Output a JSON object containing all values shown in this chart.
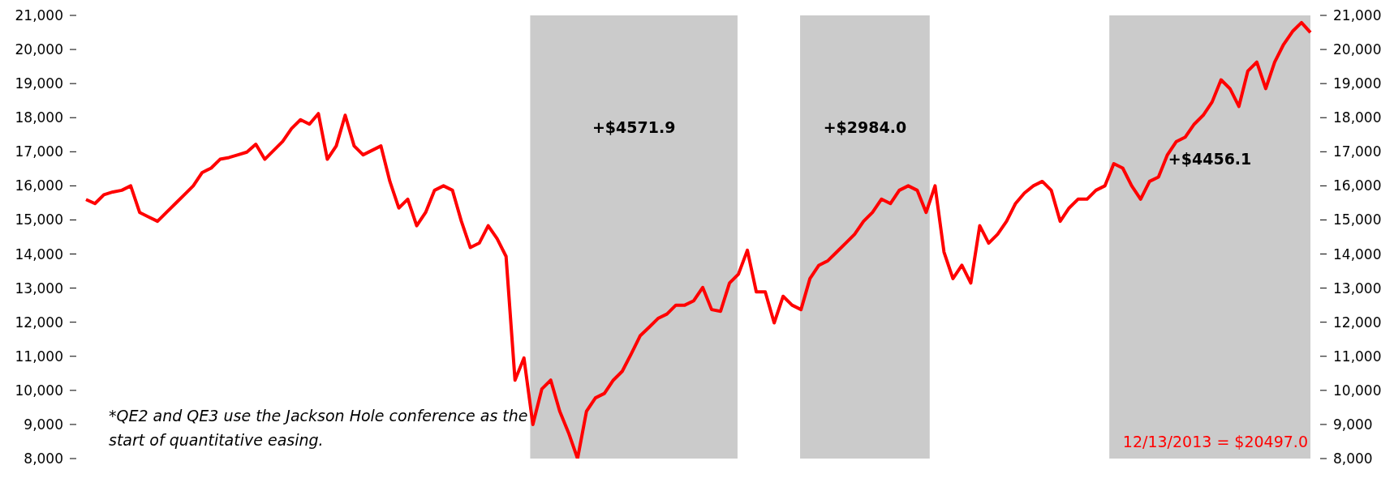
{
  "chart_data": {
    "type": "line",
    "categories": [
      null,
      null,
      null,
      null,
      null,
      null,
      null,
      null,
      null,
      null,
      null,
      null,
      null,
      null,
      null,
      null,
      null,
      null,
      null,
      null,
      null,
      null,
      null,
      null,
      null,
      null,
      null,
      null,
      null,
      null,
      null,
      null,
      null,
      null,
      null,
      null,
      null,
      null,
      null,
      null,
      null,
      null,
      null,
      null,
      null,
      null,
      null,
      null,
      null,
      null,
      null,
      null,
      null,
      null,
      null,
      null,
      null,
      null,
      null,
      null,
      null,
      null,
      null,
      null,
      null,
      null,
      null,
      null,
      null,
      null,
      null,
      null,
      null,
      null,
      null,
      null,
      null,
      null,
      null,
      null,
      null,
      null,
      null,
      null,
      null,
      null,
      null,
      null,
      null,
      null,
      null,
      null,
      null,
      null,
      null,
      null,
      null,
      null,
      null,
      null,
      null,
      null,
      null,
      null,
      null,
      null,
      null,
      null,
      null,
      null,
      null,
      null,
      null,
      null,
      null,
      null,
      null,
      null,
      null,
      null,
      null,
      null,
      null,
      null,
      null,
      null,
      null,
      null,
      null,
      null,
      null,
      null,
      null,
      null,
      null,
      null,
      null,
      null
    ],
    "series": [
      {
        "color": "#ff0000",
        "values": [
          15600,
          15480,
          15740,
          15820,
          15870,
          16000,
          15220,
          15090,
          14960,
          15220,
          15480,
          15740,
          16000,
          16390,
          16520,
          16780,
          16830,
          16910,
          16990,
          17220,
          16780,
          17040,
          17300,
          17680,
          17940,
          17810,
          18120,
          16780,
          17170,
          18070,
          17170,
          16910,
          17040,
          17170,
          16130,
          15350,
          15610,
          14830,
          15220,
          15870,
          16000,
          15870,
          14960,
          14190,
          14320,
          14830,
          14450,
          13930,
          10300,
          10950,
          9000,
          10040,
          10300,
          9390,
          8750,
          8000,
          9390,
          9780,
          9910,
          10300,
          10560,
          11070,
          11600,
          11850,
          12110,
          12240,
          12500,
          12500,
          12630,
          13020,
          12370,
          12320,
          13150,
          13410,
          14110,
          12890,
          12890,
          11980,
          12760,
          12500,
          12370,
          13280,
          13670,
          13800,
          14060,
          14320,
          14580,
          14960,
          15220,
          15610,
          15480,
          15870,
          16000,
          15870,
          15220,
          16000,
          14060,
          13280,
          13670,
          13150,
          14830,
          14320,
          14580,
          14960,
          15480,
          15790,
          16000,
          16130,
          15870,
          14960,
          15350,
          15610,
          15610,
          15870,
          16000,
          16650,
          16520,
          16000,
          15610,
          16130,
          16260,
          16910,
          17300,
          17430,
          17810,
          18070,
          18460,
          19110,
          18850,
          18330,
          19370,
          19630,
          18850,
          19630,
          20150,
          20530,
          20790,
          20500
        ]
      }
    ],
    "ylim": [
      8000,
      21000
    ],
    "yticks": [
      {
        "value": 8000,
        "label": "8,000"
      },
      {
        "value": 9000,
        "label": "9,000"
      },
      {
        "value": 10000,
        "label": "10,000"
      },
      {
        "value": 11000,
        "label": "11,000"
      },
      {
        "value": 12000,
        "label": "12,000"
      },
      {
        "value": 13000,
        "label": "13,000"
      },
      {
        "value": 14000,
        "label": "14,000"
      },
      {
        "value": 15000,
        "label": "15,000"
      },
      {
        "value": 16000,
        "label": "16,000"
      },
      {
        "value": 17000,
        "label": "17,000"
      },
      {
        "value": 18000,
        "label": "18,000"
      },
      {
        "value": 19000,
        "label": "19,000"
      },
      {
        "value": 20000,
        "label": "20,000"
      },
      {
        "value": 21000,
        "label": "21,000"
      }
    ],
    "y2lim": [
      8000,
      21000
    ],
    "y2ticks": [
      {
        "value": 8000,
        "label": "8,000"
      },
      {
        "value": 9000,
        "label": "9,000"
      },
      {
        "value": 10000,
        "label": "10,000"
      },
      {
        "value": 11000,
        "label": "11,000"
      },
      {
        "value": 12000,
        "label": "12,000"
      },
      {
        "value": 13000,
        "label": "13,000"
      },
      {
        "value": 14000,
        "label": "14,000"
      },
      {
        "value": 15000,
        "label": "15,000"
      },
      {
        "value": 16000,
        "label": "16,000"
      },
      {
        "value": 17000,
        "label": "17,000"
      },
      {
        "value": 18000,
        "label": "18,000"
      },
      {
        "value": 19000,
        "label": "19,000"
      },
      {
        "value": 20000,
        "label": "20,000"
      },
      {
        "value": 21000,
        "label": "21,000"
      }
    ],
    "annotations": [
      "+$4571.9",
      "+$2984.0",
      "+$4456.1",
      "*QE2 and QE3 use the Jackson Hole conference as the start of quantitative easing.",
      "12/13/2013 = $20497.0"
    ],
    "marker": "none",
    "line_style": "solid"
  }
}
